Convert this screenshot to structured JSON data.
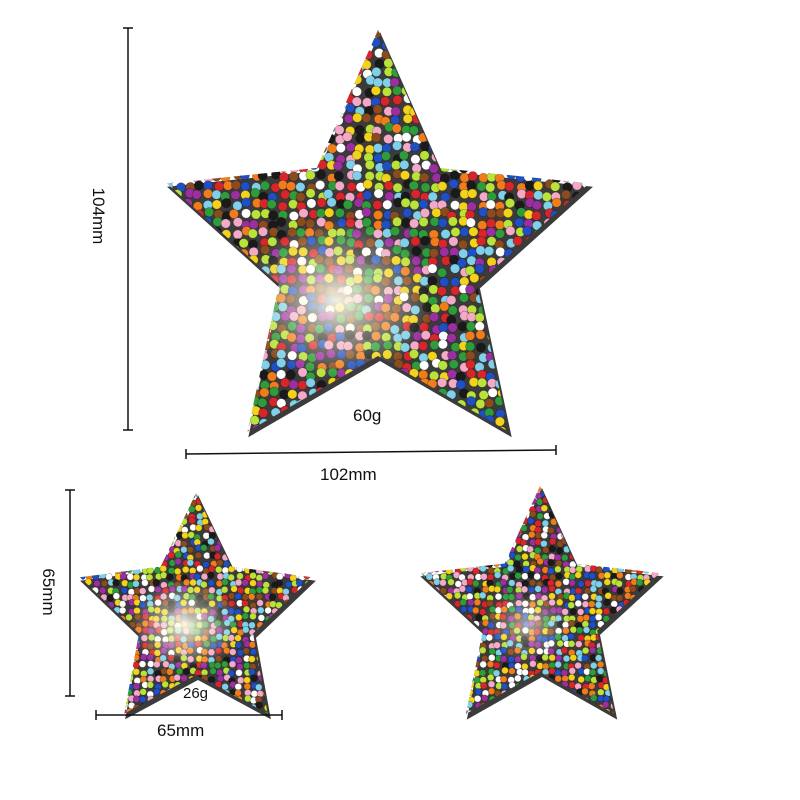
{
  "large": {
    "height_label": "104mm",
    "width_label": "102mm",
    "weight_label": "60g"
  },
  "small": {
    "height_label": "65mm",
    "width_label": "65mm",
    "weight_label": "26g"
  },
  "colors": {
    "bead_palette": [
      "#d7262b",
      "#1f4fc2",
      "#f2d21b",
      "#2e9c3a",
      "#f07c1c",
      "#ffffff",
      "#1a1a1a",
      "#7fd0e8",
      "#9b2fa0",
      "#f4a9c8",
      "#8a4b1f",
      "#b9e23a"
    ],
    "backing": "#3b3b3b",
    "highlight": "#fffbe8"
  }
}
